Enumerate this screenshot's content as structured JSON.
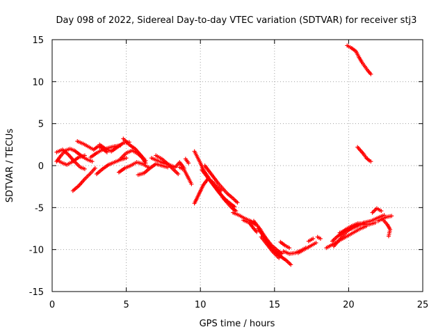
{
  "chart_data": {
    "type": "scatter",
    "title": "Day 098 of 2022, Sidereal Day-to-day VTEC variation (SDTVAR) for receiver stj3",
    "xlabel": "GPS time / hours",
    "ylabel": "SDTVAR / TECUs",
    "xlim": [
      0,
      25
    ],
    "ylim": [
      -15,
      15
    ],
    "xticks": [
      0,
      5,
      10,
      15,
      20,
      25
    ],
    "yticks": [
      -15,
      -10,
      -5,
      0,
      5,
      10,
      15
    ],
    "grid": true,
    "marker": "plus",
    "series_color": "#ff0000",
    "series": [
      {
        "name": "SDTVAR",
        "tracks": [
          [
            [
              0.3,
              0.5
            ],
            [
              0.6,
              1.2
            ],
            [
              0.9,
              1.8
            ],
            [
              1.2,
              2.0
            ],
            [
              1.5,
              1.8
            ],
            [
              1.8,
              1.4
            ],
            [
              2.1,
              1.0
            ],
            [
              2.4,
              0.7
            ],
            [
              2.7,
              0.5
            ]
          ],
          [
            [
              0.3,
              1.6
            ],
            [
              0.7,
              1.9
            ],
            [
              1.1,
              1.3
            ],
            [
              1.5,
              0.5
            ],
            [
              1.9,
              -0.2
            ],
            [
              2.2,
              -0.4
            ]
          ],
          [
            [
              0.4,
              0.6
            ],
            [
              0.7,
              0.3
            ],
            [
              1.0,
              0.1
            ],
            [
              1.4,
              0.5
            ],
            [
              1.8,
              1.0
            ],
            [
              2.2,
              1.2
            ]
          ],
          [
            [
              1.4,
              -3.0
            ],
            [
              1.8,
              -2.4
            ],
            [
              2.2,
              -1.6
            ],
            [
              2.6,
              -0.9
            ],
            [
              2.9,
              -0.3
            ]
          ],
          [
            [
              1.7,
              2.9
            ],
            [
              2.1,
              2.6
            ],
            [
              2.5,
              2.2
            ],
            [
              2.8,
              1.9
            ],
            [
              3.1,
              2.3
            ],
            [
              3.4,
              2.0
            ],
            [
              3.7,
              1.6
            ]
          ],
          [
            [
              2.6,
              1.0
            ],
            [
              3.0,
              1.5
            ],
            [
              3.4,
              1.9
            ],
            [
              3.8,
              2.1
            ],
            [
              4.2,
              2.3
            ],
            [
              4.6,
              2.4
            ]
          ],
          [
            [
              3.0,
              -1.0
            ],
            [
              3.4,
              -0.4
            ],
            [
              3.8,
              0.1
            ],
            [
              4.2,
              0.4
            ],
            [
              4.6,
              0.7
            ],
            [
              5.0,
              0.9
            ]
          ],
          [
            [
              3.2,
              2.5
            ],
            [
              3.6,
              2.0
            ],
            [
              4.0,
              1.7
            ],
            [
              4.4,
              2.2
            ],
            [
              4.8,
              2.7
            ],
            [
              5.2,
              2.8
            ]
          ],
          [
            [
              4.6,
              0.8
            ],
            [
              5.0,
              1.5
            ],
            [
              5.4,
              1.8
            ],
            [
              5.8,
              1.4
            ],
            [
              6.1,
              0.9
            ],
            [
              6.3,
              0.3
            ]
          ],
          [
            [
              4.8,
              3.2
            ],
            [
              5.2,
              2.5
            ],
            [
              5.6,
              2.0
            ],
            [
              6.0,
              1.2
            ],
            [
              6.3,
              0.6
            ]
          ],
          [
            [
              4.5,
              -0.8
            ],
            [
              4.9,
              -0.3
            ],
            [
              5.3,
              0.0
            ],
            [
              5.7,
              0.4
            ],
            [
              6.1,
              0.2
            ],
            [
              6.5,
              -0.2
            ]
          ],
          [
            [
              5.8,
              -1.1
            ],
            [
              6.2,
              -0.9
            ],
            [
              6.6,
              -0.3
            ],
            [
              7.0,
              0.2
            ],
            [
              7.4,
              0.0
            ],
            [
              7.8,
              -0.2
            ]
          ],
          [
            [
              6.7,
              0.9
            ],
            [
              7.1,
              0.6
            ],
            [
              7.5,
              0.3
            ],
            [
              7.9,
              0.1
            ],
            [
              8.3,
              -0.2
            ],
            [
              8.6,
              0.4
            ],
            [
              8.9,
              -0.3
            ]
          ],
          [
            [
              7.0,
              1.2
            ],
            [
              7.4,
              0.8
            ],
            [
              7.8,
              0.2
            ],
            [
              8.2,
              -0.5
            ],
            [
              8.5,
              -1.0
            ]
          ],
          [
            [
              8.6,
              -0.2
            ],
            [
              8.9,
              -0.5
            ],
            [
              9.2,
              -1.5
            ],
            [
              9.4,
              -2.2
            ]
          ],
          [
            [
              9.0,
              0.8
            ],
            [
              9.2,
              0.3
            ]
          ],
          [
            [
              9.6,
              1.7
            ],
            [
              9.8,
              1.0
            ],
            [
              10.0,
              0.3
            ],
            [
              10.2,
              -0.5
            ],
            [
              10.5,
              -1.3
            ],
            [
              10.8,
              -2.1
            ],
            [
              11.1,
              -2.8
            ],
            [
              11.4,
              -3.5
            ],
            [
              11.7,
              -4.1
            ]
          ],
          [
            [
              9.6,
              -4.5
            ],
            [
              9.9,
              -3.4
            ],
            [
              10.2,
              -2.3
            ],
            [
              10.5,
              -1.6
            ],
            [
              10.8,
              -1.9
            ],
            [
              11.1,
              -2.5
            ],
            [
              11.4,
              -3.0
            ]
          ],
          [
            [
              10.1,
              -0.5
            ],
            [
              10.4,
              -1.2
            ],
            [
              10.7,
              -1.9
            ],
            [
              11.0,
              -2.6
            ],
            [
              11.3,
              -3.3
            ],
            [
              11.6,
              -3.9
            ],
            [
              12.0,
              -4.5
            ],
            [
              12.3,
              -4.9
            ]
          ],
          [
            [
              10.3,
              0.0
            ],
            [
              10.6,
              -0.7
            ],
            [
              10.9,
              -1.4
            ],
            [
              11.2,
              -2.1
            ],
            [
              11.5,
              -2.7
            ],
            [
              11.8,
              -3.3
            ],
            [
              12.2,
              -3.9
            ],
            [
              12.5,
              -4.4
            ]
          ],
          [
            [
              11.5,
              -3.8
            ],
            [
              11.8,
              -4.4
            ],
            [
              12.1,
              -5.0
            ],
            [
              12.4,
              -5.4
            ]
          ],
          [
            [
              12.2,
              -5.6
            ],
            [
              12.6,
              -5.9
            ],
            [
              13.0,
              -6.3
            ],
            [
              13.4,
              -6.6
            ],
            [
              13.7,
              -7.0
            ]
          ],
          [
            [
              12.9,
              -6.5
            ],
            [
              13.3,
              -6.8
            ],
            [
              13.6,
              -7.5
            ],
            [
              13.8,
              -7.9
            ]
          ],
          [
            [
              13.6,
              -6.6
            ],
            [
              14.0,
              -7.5
            ],
            [
              14.4,
              -8.6
            ],
            [
              14.8,
              -9.5
            ],
            [
              15.2,
              -10.1
            ],
            [
              15.5,
              -10.5
            ]
          ],
          [
            [
              13.9,
              -7.5
            ],
            [
              14.3,
              -8.5
            ],
            [
              14.7,
              -9.6
            ],
            [
              15.1,
              -10.3
            ],
            [
              15.4,
              -10.8
            ]
          ],
          [
            [
              14.1,
              -8.5
            ],
            [
              14.5,
              -9.4
            ],
            [
              14.9,
              -10.3
            ],
            [
              15.3,
              -11.0
            ]
          ],
          [
            [
              15.0,
              -10.3
            ],
            [
              15.4,
              -10.8
            ],
            [
              15.8,
              -11.3
            ],
            [
              16.1,
              -11.8
            ]
          ],
          [
            [
              15.4,
              -9.1
            ],
            [
              15.7,
              -9.5
            ],
            [
              16.0,
              -9.8
            ]
          ],
          [
            [
              15.6,
              -10.2
            ],
            [
              16.0,
              -10.5
            ],
            [
              16.4,
              -10.4
            ],
            [
              16.8,
              -10.1
            ],
            [
              17.1,
              -9.8
            ]
          ],
          [
            [
              16.6,
              -10.4
            ],
            [
              17.0,
              -10.0
            ],
            [
              17.4,
              -9.6
            ],
            [
              17.8,
              -9.2
            ]
          ],
          [
            [
              17.3,
              -9.0
            ],
            [
              17.6,
              -8.7
            ]
          ],
          [
            [
              17.9,
              -8.5
            ],
            [
              18.1,
              -8.7
            ]
          ],
          [
            [
              18.5,
              -9.8
            ],
            [
              18.8,
              -9.5
            ],
            [
              19.1,
              -9.2
            ],
            [
              19.4,
              -8.9
            ],
            [
              19.7,
              -8.6
            ],
            [
              20.0,
              -8.3
            ],
            [
              20.4,
              -7.9
            ],
            [
              20.8,
              -7.5
            ],
            [
              21.2,
              -7.2
            ]
          ],
          [
            [
              18.9,
              -9.0
            ],
            [
              19.2,
              -8.5
            ],
            [
              19.5,
              -8.1
            ],
            [
              19.8,
              -7.6
            ],
            [
              20.2,
              -7.2
            ],
            [
              20.6,
              -6.9
            ],
            [
              21.0,
              -6.9
            ],
            [
              21.4,
              -7.0
            ],
            [
              21.8,
              -6.8
            ]
          ],
          [
            [
              19.0,
              -9.6
            ],
            [
              19.3,
              -9.0
            ],
            [
              19.6,
              -8.4
            ],
            [
              19.9,
              -7.8
            ],
            [
              20.3,
              -7.3
            ],
            [
              20.7,
              -7.0
            ],
            [
              21.1,
              -7.0
            ]
          ],
          [
            [
              19.4,
              -8.0
            ],
            [
              19.8,
              -7.7
            ],
            [
              20.2,
              -7.5
            ],
            [
              20.6,
              -7.2
            ],
            [
              21.0,
              -6.8
            ],
            [
              21.5,
              -6.6
            ],
            [
              22.0,
              -6.2
            ],
            [
              22.4,
              -5.9
            ]
          ],
          [
            [
              21.6,
              -5.6
            ],
            [
              21.9,
              -5.1
            ],
            [
              22.2,
              -5.4
            ]
          ],
          [
            [
              22.0,
              -6.6
            ],
            [
              22.3,
              -6.3
            ],
            [
              22.6,
              -6.1
            ],
            [
              22.9,
              -6.0
            ]
          ],
          [
            [
              22.3,
              -6.4
            ],
            [
              22.6,
              -7.0
            ],
            [
              22.8,
              -7.6
            ],
            [
              22.7,
              -8.4
            ]
          ],
          [
            [
              19.9,
              14.3
            ],
            [
              20.2,
              14.0
            ],
            [
              20.5,
              13.6
            ],
            [
              20.7,
              12.9
            ],
            [
              20.9,
              12.3
            ],
            [
              21.1,
              11.8
            ],
            [
              21.3,
              11.3
            ],
            [
              21.5,
              10.9
            ]
          ],
          [
            [
              20.6,
              2.2
            ],
            [
              20.8,
              1.8
            ],
            [
              21.0,
              1.4
            ],
            [
              21.2,
              0.9
            ],
            [
              21.4,
              0.6
            ],
            [
              21.5,
              0.5
            ]
          ]
        ]
      }
    ]
  }
}
